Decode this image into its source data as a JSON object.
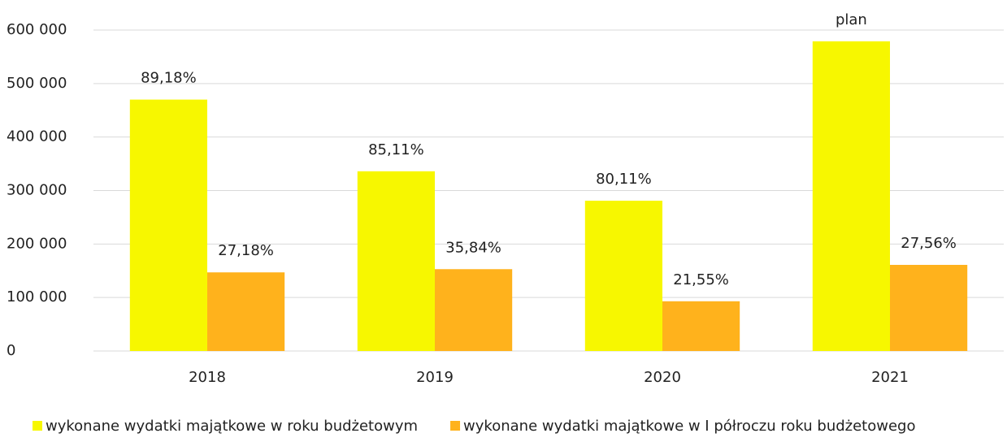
{
  "chart_data": {
    "type": "bar",
    "categories": [
      "2018",
      "2019",
      "2020",
      "2021"
    ],
    "series": [
      {
        "name": "wykonane wydatki majątkowe w roku budżetowym",
        "color": "#f7f700",
        "values": [
          470000,
          336000,
          281000,
          579000
        ],
        "bar_labels": [
          "89,18%",
          "85,11%",
          "80,11%",
          "plan"
        ]
      },
      {
        "name": "wykonane wydatki majątkowe w I półroczu roku budżetowego",
        "color": "#ffb21c",
        "values": [
          147000,
          153000,
          93000,
          161000
        ],
        "bar_labels": [
          "27,18%",
          "35,84%",
          "21,55%",
          "27,56%"
        ]
      }
    ],
    "ylim": [
      0,
      600000
    ],
    "yticks": [
      0,
      {
        "value": 100000,
        "label": "100 000"
      },
      {
        "value": 200000,
        "label": "200 000"
      },
      {
        "value": 300000,
        "label": "300 000"
      },
      {
        "value": 400000,
        "label": "400 000"
      },
      {
        "value": 500000,
        "label": "500 000"
      },
      {
        "value": 600000,
        "label": "600 000"
      }
    ],
    "grid": true,
    "legend": "bottom"
  }
}
